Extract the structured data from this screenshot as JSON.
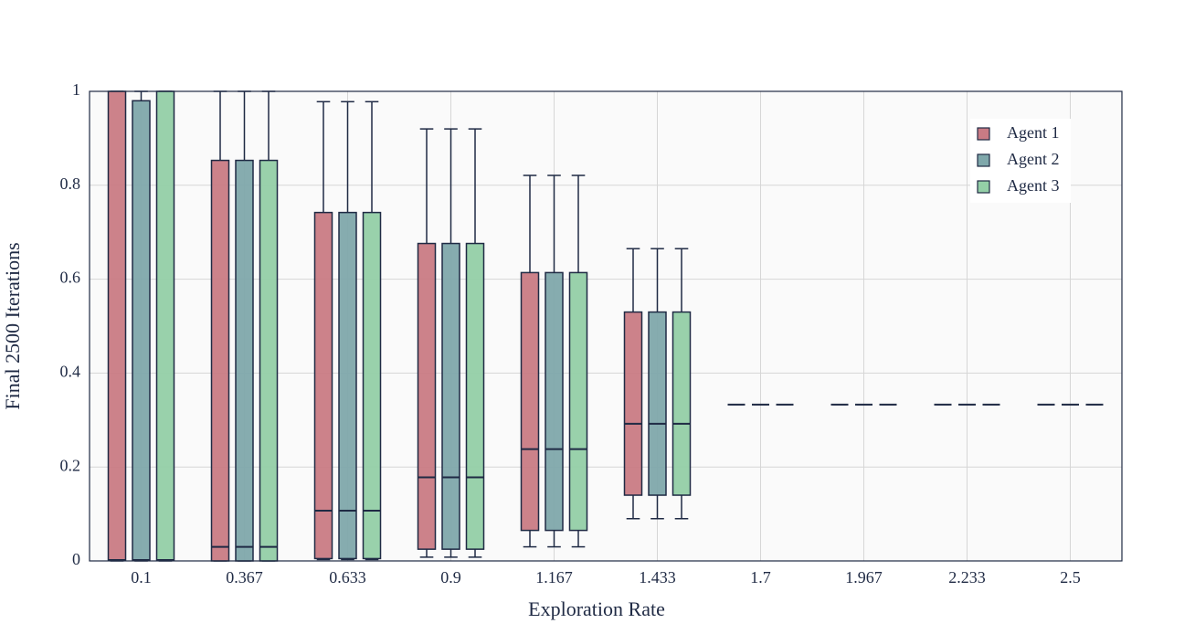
{
  "chart_data": {
    "type": "box",
    "xlabel": "Exploration Rate",
    "ylabel": "Final 2500 Iterations",
    "categories": [
      "0.1",
      "0.367",
      "0.633",
      "0.9",
      "1.167",
      "1.433",
      "1.7",
      "1.967",
      "2.233",
      "2.5"
    ],
    "ylim": [
      0,
      1
    ],
    "yticks": [
      0,
      0.2,
      0.4,
      0.6,
      0.8,
      1
    ],
    "grid": true,
    "legend": "top-right",
    "series": [
      {
        "name": "Agent 1",
        "color": "#c97b84",
        "min": [
          0,
          0,
          0.003,
          0.008,
          0.03,
          0.09,
          0.333,
          0.333,
          0.333,
          0.333
        ],
        "q1": [
          0.002,
          0,
          0.005,
          0.025,
          0.065,
          0.14,
          0.333,
          0.333,
          0.333,
          0.333
        ],
        "median": [
          0.002,
          0.03,
          0.107,
          0.178,
          0.238,
          0.292,
          0.333,
          0.333,
          0.333,
          0.333
        ],
        "q3": [
          1,
          0.853,
          0.742,
          0.676,
          0.614,
          0.53,
          0.333,
          0.333,
          0.333,
          0.333
        ],
        "max": [
          1,
          1,
          0.978,
          0.92,
          0.821,
          0.665,
          0.333,
          0.333,
          0.333,
          0.333
        ]
      },
      {
        "name": "Agent 2",
        "color": "#7fa8ab",
        "min": [
          0,
          0,
          0.003,
          0.008,
          0.03,
          0.09,
          0.333,
          0.333,
          0.333,
          0.333
        ],
        "q1": [
          0.002,
          0,
          0.005,
          0.025,
          0.065,
          0.14,
          0.333,
          0.333,
          0.333,
          0.333
        ],
        "median": [
          0.002,
          0.03,
          0.107,
          0.178,
          0.238,
          0.292,
          0.333,
          0.333,
          0.333,
          0.333
        ],
        "q3": [
          0.98,
          0.853,
          0.742,
          0.676,
          0.614,
          0.53,
          0.333,
          0.333,
          0.333,
          0.333
        ],
        "max": [
          1,
          1,
          0.978,
          0.92,
          0.821,
          0.665,
          0.333,
          0.333,
          0.333,
          0.333
        ]
      },
      {
        "name": "Agent 3",
        "color": "#94cfa7",
        "min": [
          0,
          0,
          0.003,
          0.008,
          0.03,
          0.09,
          0.333,
          0.333,
          0.333,
          0.333
        ],
        "q1": [
          0.002,
          0,
          0.005,
          0.025,
          0.065,
          0.14,
          0.333,
          0.333,
          0.333,
          0.333
        ],
        "median": [
          0.002,
          0.03,
          0.107,
          0.178,
          0.238,
          0.292,
          0.333,
          0.333,
          0.333,
          0.333
        ],
        "q3": [
          1,
          0.853,
          0.742,
          0.676,
          0.614,
          0.53,
          0.333,
          0.333,
          0.333,
          0.333
        ],
        "max": [
          1,
          1,
          0.978,
          0.92,
          0.821,
          0.665,
          0.333,
          0.333,
          0.333,
          0.333
        ]
      }
    ]
  }
}
